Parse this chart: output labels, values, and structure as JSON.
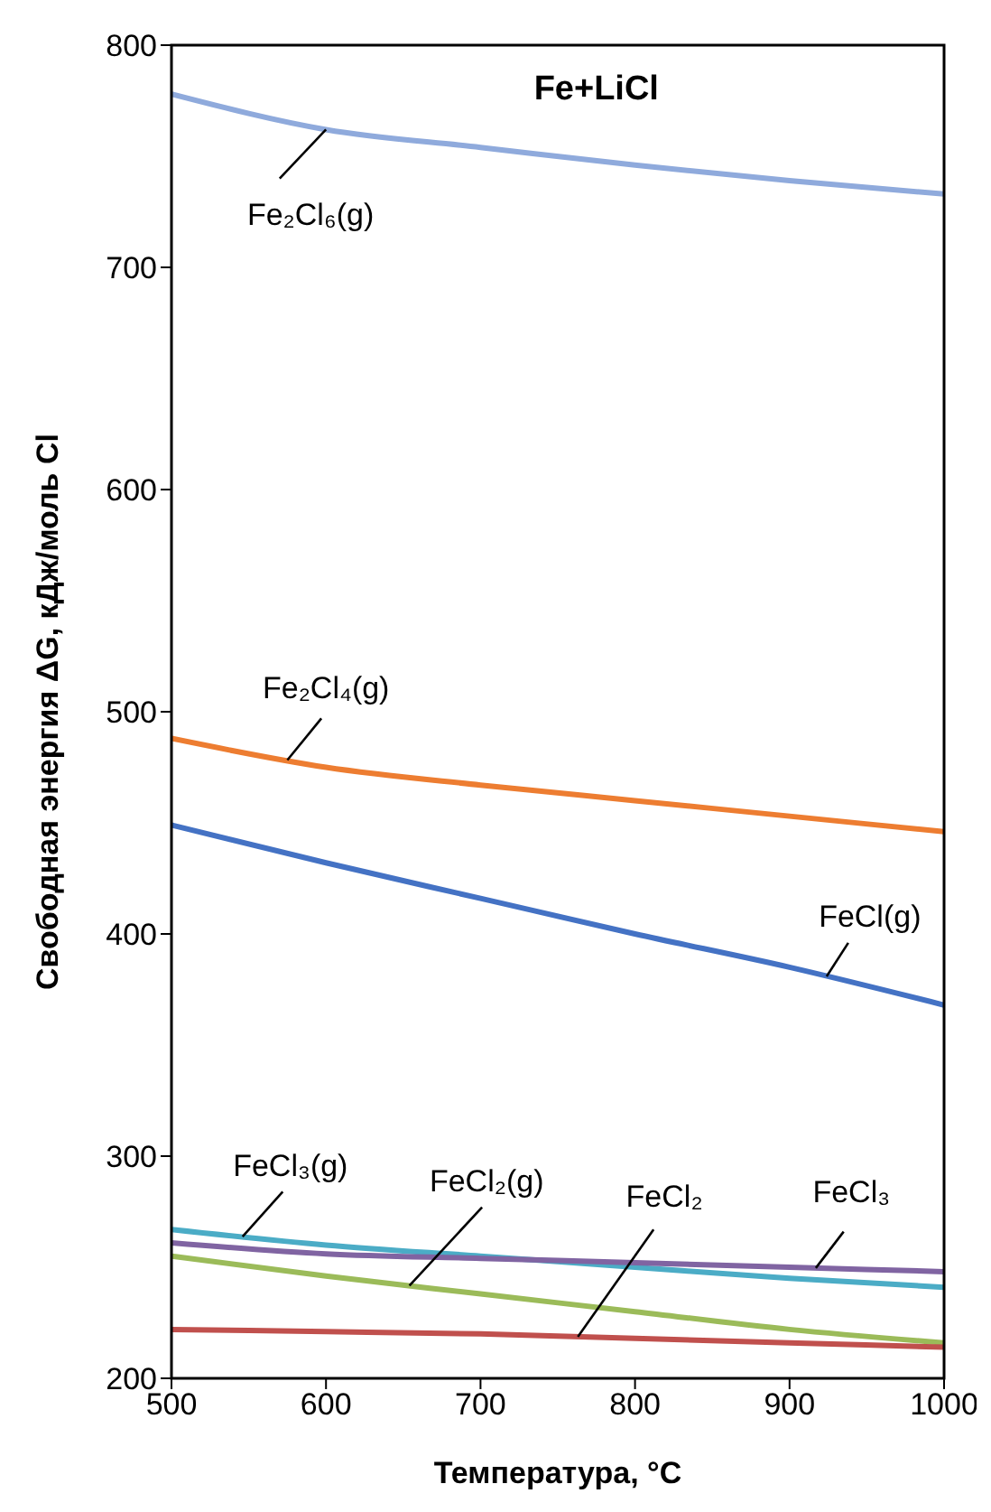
{
  "chart_data": {
    "type": "line",
    "title": "Fe+LiCl",
    "xlabel": "Температура, °C",
    "ylabel": "Свободная энергия ΔG, кДж/моль Cl",
    "x": [
      500,
      600,
      700,
      800,
      900,
      1000
    ],
    "series": [
      {
        "name": "Fe₂Cl₆(g)",
        "color": "#8faadc",
        "values": [
          778,
          762,
          754,
          746,
          739,
          733
        ]
      },
      {
        "name": "Fe₂Cl₄(g)",
        "color": "#ed7d31",
        "values": [
          488,
          475,
          467,
          460,
          453,
          446
        ]
      },
      {
        "name": "FeCl(g)",
        "color": "#4472c4",
        "values": [
          449,
          432,
          416,
          400,
          385,
          368
        ]
      },
      {
        "name": "FeCl₃(g)",
        "color": "#4bacc6",
        "values": [
          267,
          260,
          255,
          250,
          245,
          241
        ]
      },
      {
        "name": "FeCl₂(g)",
        "color": "#9bbb59",
        "values": [
          255,
          246,
          238,
          230,
          222,
          216
        ]
      },
      {
        "name": "FeCl₂",
        "color": "#c0504d",
        "values": [
          222,
          221,
          220,
          218,
          216,
          214
        ]
      },
      {
        "name": "FeCl₃",
        "color": "#8064a2",
        "values": [
          261,
          256,
          254,
          252,
          250,
          248
        ]
      }
    ],
    "xlim": [
      500,
      1000
    ],
    "xticks": [
      500,
      600,
      700,
      800,
      900,
      1000
    ],
    "ylim": [
      200,
      800
    ],
    "yticks": [
      200,
      300,
      400,
      500,
      600,
      700,
      800
    ],
    "grid": false,
    "legend": false,
    "marker": "none",
    "line_style": "solid"
  }
}
